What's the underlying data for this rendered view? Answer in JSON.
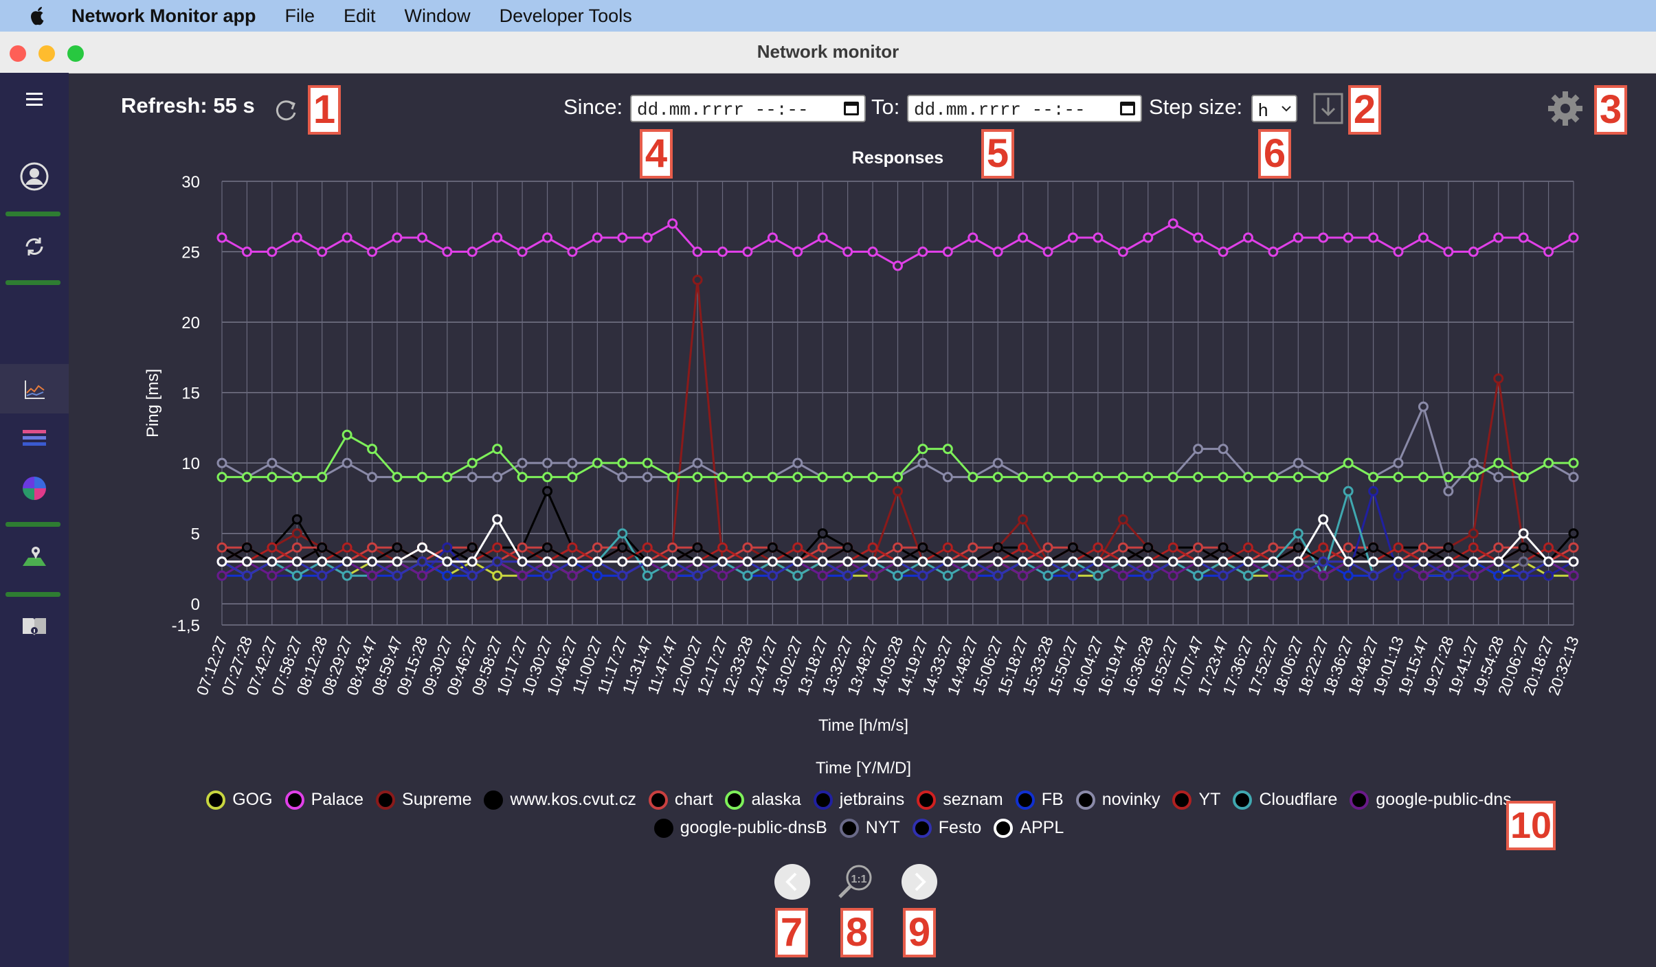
{
  "menubar": {
    "app": "Network Monitor app",
    "items": [
      "File",
      "Edit",
      "Window",
      "Developer Tools"
    ]
  },
  "window": {
    "title": "Network monitor"
  },
  "sidebar": {
    "icons": [
      "menu-icon",
      "user-icon",
      "sync-icon",
      "chart-icon",
      "bars-icon",
      "pie-icon",
      "map-icon",
      "book-icon"
    ]
  },
  "toolbar": {
    "refresh": "Refresh: 55 s",
    "since_label": "Since:",
    "since_value": "dd.mm.rrrr --:--",
    "to_label": "To:",
    "to_value": "dd.mm.rrrr --:--",
    "step_label": "Step size:",
    "step_value": "h"
  },
  "callouts": [
    "1",
    "2",
    "3",
    "4",
    "5",
    "6",
    "7",
    "8",
    "9",
    "10"
  ],
  "chart_data": {
    "type": "line",
    "title": "Responses",
    "ylabel": "Ping [ms]",
    "xlabel": "Time [h/m/s]",
    "x2label": "Time [Y/M/D]",
    "ylim": [
      -1.5,
      30
    ],
    "yticks": [
      "30",
      "25",
      "20",
      "15",
      "10",
      "5",
      "0",
      "-1,5"
    ],
    "yticks_values": [
      30,
      25,
      20,
      15,
      10,
      5,
      0,
      -1.5
    ],
    "xticks": [
      "07:12:27",
      "07:27:28",
      "07:42:27",
      "07:58:27",
      "08:12:28",
      "08:29:27",
      "08:43:47",
      "08:59:47",
      "09:15:28",
      "09:30:27",
      "09:46:27",
      "09:58:27",
      "10:17:27",
      "10:30:27",
      "10:46:27",
      "11:00:27",
      "11:17:27",
      "11:31:47",
      "11:47:47",
      "12:00:27",
      "12:17:27",
      "12:33:28",
      "12:47:27",
      "13:02:27",
      "13:18:27",
      "13:32:27",
      "13:48:27",
      "14:03:28",
      "14:19:27",
      "14:33:27",
      "14:48:27",
      "15:06:27",
      "15:18:27",
      "15:33:28",
      "15:50:27",
      "16:04:27",
      "16:19:47",
      "16:36:28",
      "16:52:27",
      "17:07:47",
      "17:23:47",
      "17:36:27",
      "17:52:27",
      "18:06:27",
      "18:22:27",
      "18:36:27",
      "18:48:27",
      "19:01:13",
      "19:15:47",
      "19:27:28",
      "19:41:27",
      "19:54:28",
      "20:06:27",
      "20:18:27",
      "20:32:13"
    ],
    "grid": true,
    "legend_position": "bottom",
    "series": [
      {
        "name": "GOG",
        "color": "#c8d640",
        "values": [
          3,
          2,
          3,
          2,
          3,
          2,
          3,
          2,
          3,
          2,
          3,
          2,
          2,
          3,
          2,
          3,
          2,
          3,
          2,
          2,
          3,
          2,
          3,
          2,
          3,
          2,
          2,
          3,
          2,
          3,
          2,
          3,
          2,
          3,
          2,
          2,
          3,
          2,
          3,
          2,
          3,
          2,
          2,
          3,
          2,
          3,
          2,
          3,
          2,
          2,
          3,
          2,
          3,
          2,
          2
        ]
      },
      {
        "name": "Palace",
        "color": "#e040e8",
        "values": [
          26,
          25,
          25,
          26,
          25,
          26,
          25,
          26,
          26,
          25,
          25,
          26,
          25,
          26,
          25,
          26,
          26,
          26,
          27,
          25,
          25,
          25,
          26,
          25,
          26,
          25,
          25,
          24,
          25,
          25,
          26,
          25,
          26,
          25,
          26,
          26,
          25,
          26,
          27,
          26,
          25,
          26,
          25,
          26,
          26,
          26,
          26,
          25,
          26,
          25,
          25,
          26,
          26,
          25,
          26
        ]
      },
      {
        "name": "Supreme",
        "color": "#8a1a1a",
        "values": [
          4,
          3,
          4,
          5,
          4,
          3,
          4,
          3,
          4,
          3,
          4,
          3,
          4,
          3,
          4,
          3,
          4,
          3,
          4,
          23,
          3,
          4,
          3,
          4,
          3,
          4,
          3,
          8,
          3,
          4,
          3,
          4,
          6,
          3,
          4,
          3,
          6,
          4,
          3,
          4,
          3,
          4,
          3,
          4,
          3,
          4,
          3,
          4,
          3,
          4,
          5,
          16,
          4,
          3,
          4
        ]
      },
      {
        "name": "www.kos.cvut.cz",
        "color": "#000000",
        "values": [
          4,
          3,
          4,
          6,
          3,
          4,
          3,
          4,
          3,
          4,
          3,
          4,
          4,
          8,
          4,
          3,
          5,
          3,
          4,
          3,
          4,
          3,
          4,
          3,
          5,
          4,
          3,
          4,
          3,
          4,
          3,
          4,
          4,
          3,
          4,
          3,
          4,
          3,
          4,
          4,
          3,
          4,
          3,
          4,
          3,
          4,
          3,
          4,
          4,
          3,
          4,
          3,
          4,
          3,
          5
        ]
      },
      {
        "name": "chart",
        "color": "#c94040",
        "values": [
          4,
          4,
          3,
          4,
          4,
          3,
          4,
          4,
          3,
          4,
          4,
          3,
          4,
          4,
          3,
          4,
          4,
          3,
          4,
          4,
          3,
          4,
          4,
          3,
          4,
          4,
          3,
          4,
          4,
          3,
          4,
          4,
          3,
          4,
          4,
          3,
          4,
          4,
          3,
          4,
          4,
          3,
          4,
          4,
          3,
          4,
          4,
          3,
          4,
          4,
          3,
          4,
          4,
          3,
          4
        ]
      },
      {
        "name": "alaska",
        "color": "#7ef05a",
        "values": [
          9,
          9,
          9,
          9,
          9,
          12,
          11,
          9,
          9,
          9,
          10,
          11,
          9,
          9,
          9,
          10,
          10,
          10,
          9,
          9,
          9,
          9,
          9,
          9,
          9,
          9,
          9,
          9,
          11,
          11,
          9,
          9,
          9,
          9,
          9,
          9,
          9,
          9,
          9,
          9,
          9,
          9,
          9,
          9,
          9,
          10,
          9,
          9,
          9,
          9,
          9,
          10,
          9,
          10,
          10
        ]
      },
      {
        "name": "jetbrains",
        "color": "#2020a0",
        "values": [
          2,
          3,
          2,
          2,
          3,
          2,
          2,
          3,
          2,
          4,
          2,
          3,
          2,
          2,
          3,
          2,
          2,
          3,
          2,
          2,
          3,
          2,
          2,
          3,
          2,
          2,
          3,
          2,
          2,
          3,
          2,
          2,
          3,
          2,
          2,
          3,
          2,
          2,
          3,
          2,
          2,
          3,
          2,
          2,
          3,
          2,
          8,
          2,
          3,
          2,
          2,
          3,
          2,
          2,
          3
        ]
      },
      {
        "name": "seznam",
        "color": "#d02020",
        "values": [
          3,
          4,
          3,
          3,
          4,
          3,
          3,
          4,
          3,
          3,
          4,
          3,
          3,
          4,
          3,
          3,
          4,
          3,
          3,
          4,
          3,
          3,
          4,
          3,
          3,
          4,
          3,
          3,
          4,
          3,
          3,
          4,
          3,
          3,
          4,
          3,
          3,
          4,
          3,
          3,
          4,
          3,
          3,
          4,
          3,
          3,
          4,
          3,
          3,
          4,
          3,
          3,
          4,
          3,
          3
        ]
      },
      {
        "name": "FB",
        "color": "#1030d0",
        "values": [
          2,
          2,
          3,
          2,
          2,
          3,
          2,
          2,
          3,
          2,
          2,
          3,
          2,
          2,
          3,
          2,
          2,
          3,
          2,
          2,
          3,
          2,
          2,
          3,
          2,
          2,
          3,
          2,
          2,
          3,
          2,
          2,
          3,
          2,
          2,
          3,
          2,
          2,
          3,
          2,
          2,
          3,
          2,
          2,
          3,
          2,
          2,
          3,
          2,
          2,
          3,
          2,
          2,
          3,
          2
        ]
      },
      {
        "name": "novinky",
        "color": "#8a8aa8",
        "values": [
          10,
          9,
          10,
          9,
          9,
          10,
          9,
          9,
          9,
          9,
          9,
          9,
          10,
          10,
          10,
          10,
          9,
          9,
          9,
          10,
          9,
          9,
          9,
          10,
          9,
          9,
          9,
          9,
          10,
          9,
          9,
          10,
          9,
          9,
          9,
          9,
          9,
          9,
          9,
          11,
          11,
          9,
          9,
          10,
          9,
          10,
          9,
          10,
          14,
          8,
          10,
          9,
          9,
          10,
          9
        ]
      },
      {
        "name": "YT",
        "color": "#b02020",
        "values": [
          3,
          3,
          4,
          3,
          3,
          4,
          3,
          3,
          4,
          3,
          3,
          4,
          3,
          3,
          4,
          3,
          3,
          4,
          3,
          3,
          4,
          3,
          3,
          4,
          3,
          3,
          4,
          3,
          3,
          4,
          3,
          3,
          4,
          3,
          3,
          4,
          3,
          3,
          4,
          3,
          3,
          4,
          3,
          3,
          4,
          3,
          3,
          4,
          3,
          3,
          4,
          3,
          3,
          4,
          3
        ]
      },
      {
        "name": "Cloudflare",
        "color": "#40a8b0",
        "values": [
          3,
          2,
          3,
          2,
          3,
          2,
          2,
          3,
          2,
          3,
          2,
          3,
          2,
          3,
          2,
          3,
          5,
          2,
          3,
          2,
          3,
          2,
          3,
          2,
          3,
          2,
          3,
          2,
          3,
          2,
          3,
          2,
          3,
          2,
          3,
          2,
          3,
          2,
          3,
          2,
          3,
          2,
          3,
          5,
          2,
          8,
          2,
          3,
          2,
          3,
          2,
          3,
          2,
          3,
          2
        ]
      },
      {
        "name": "google-public-dns",
        "color": "#6a1a8a",
        "values": [
          2,
          3,
          2,
          3,
          2,
          3,
          2,
          3,
          2,
          3,
          2,
          3,
          2,
          3,
          2,
          3,
          2,
          3,
          2,
          3,
          2,
          3,
          2,
          3,
          2,
          3,
          2,
          3,
          2,
          3,
          2,
          3,
          2,
          3,
          2,
          3,
          2,
          3,
          2,
          3,
          2,
          3,
          2,
          3,
          2,
          3,
          2,
          3,
          2,
          3,
          2,
          3,
          2,
          3,
          2
        ]
      },
      {
        "name": "google-public-dnsB",
        "color": "#000000",
        "values": [
          3,
          4,
          3,
          3,
          4,
          3,
          3,
          4,
          3,
          3,
          4,
          3,
          3,
          4,
          3,
          3,
          4,
          3,
          3,
          4,
          3,
          3,
          4,
          3,
          3,
          4,
          3,
          3,
          4,
          3,
          3,
          4,
          3,
          3,
          4,
          3,
          3,
          4,
          3,
          3,
          4,
          3,
          3,
          4,
          3,
          3,
          4,
          3,
          3,
          4,
          3,
          3,
          4,
          3,
          3
        ]
      },
      {
        "name": "NYT",
        "color": "#6a6a88",
        "values": [
          3,
          3,
          3,
          3,
          3,
          3,
          3,
          3,
          3,
          3,
          3,
          3,
          3,
          3,
          3,
          3,
          3,
          3,
          3,
          3,
          3,
          3,
          3,
          3,
          3,
          3,
          3,
          3,
          3,
          3,
          3,
          3,
          3,
          3,
          3,
          3,
          3,
          3,
          3,
          3,
          3,
          3,
          3,
          3,
          3,
          3,
          3,
          3,
          3,
          3,
          3,
          3,
          3,
          3,
          3
        ]
      },
      {
        "name": "Festo",
        "color": "#3030b0",
        "values": [
          3,
          2,
          3,
          3,
          2,
          3,
          3,
          2,
          3,
          3,
          2,
          3,
          3,
          2,
          3,
          3,
          2,
          3,
          3,
          2,
          3,
          3,
          2,
          3,
          3,
          2,
          3,
          3,
          2,
          3,
          3,
          2,
          3,
          3,
          2,
          3,
          3,
          2,
          3,
          3,
          2,
          3,
          3,
          2,
          3,
          3,
          2,
          3,
          3,
          2,
          3,
          3,
          2,
          3,
          3
        ]
      },
      {
        "name": "APPL",
        "color": "#ffffff",
        "values": [
          3,
          3,
          3,
          3,
          3,
          3,
          3,
          3,
          4,
          3,
          3,
          6,
          3,
          3,
          3,
          3,
          3,
          3,
          3,
          3,
          3,
          3,
          3,
          3,
          3,
          3,
          3,
          3,
          3,
          3,
          3,
          3,
          3,
          3,
          3,
          3,
          3,
          3,
          3,
          3,
          3,
          3,
          3,
          3,
          6,
          3,
          3,
          3,
          3,
          3,
          3,
          3,
          5,
          3,
          3
        ]
      }
    ],
    "legend_fill": {
      "GOG": "#000000",
      "Palace": "#000000",
      "Supreme": "#000000",
      "www.kos.cvut.cz": "#000000",
      "chart": "#000000",
      "alaska": "#000000",
      "jetbrains": "#000000",
      "seznam": "#000000",
      "FB": "#000000",
      "novinky": "#000000",
      "YT": "#000000",
      "Cloudflare": "#000000",
      "google-public-dns": "#000000",
      "google-public-dnsB": "#000000",
      "NYT": "#000000",
      "Festo": "#000000",
      "APPL": "#000000"
    }
  }
}
